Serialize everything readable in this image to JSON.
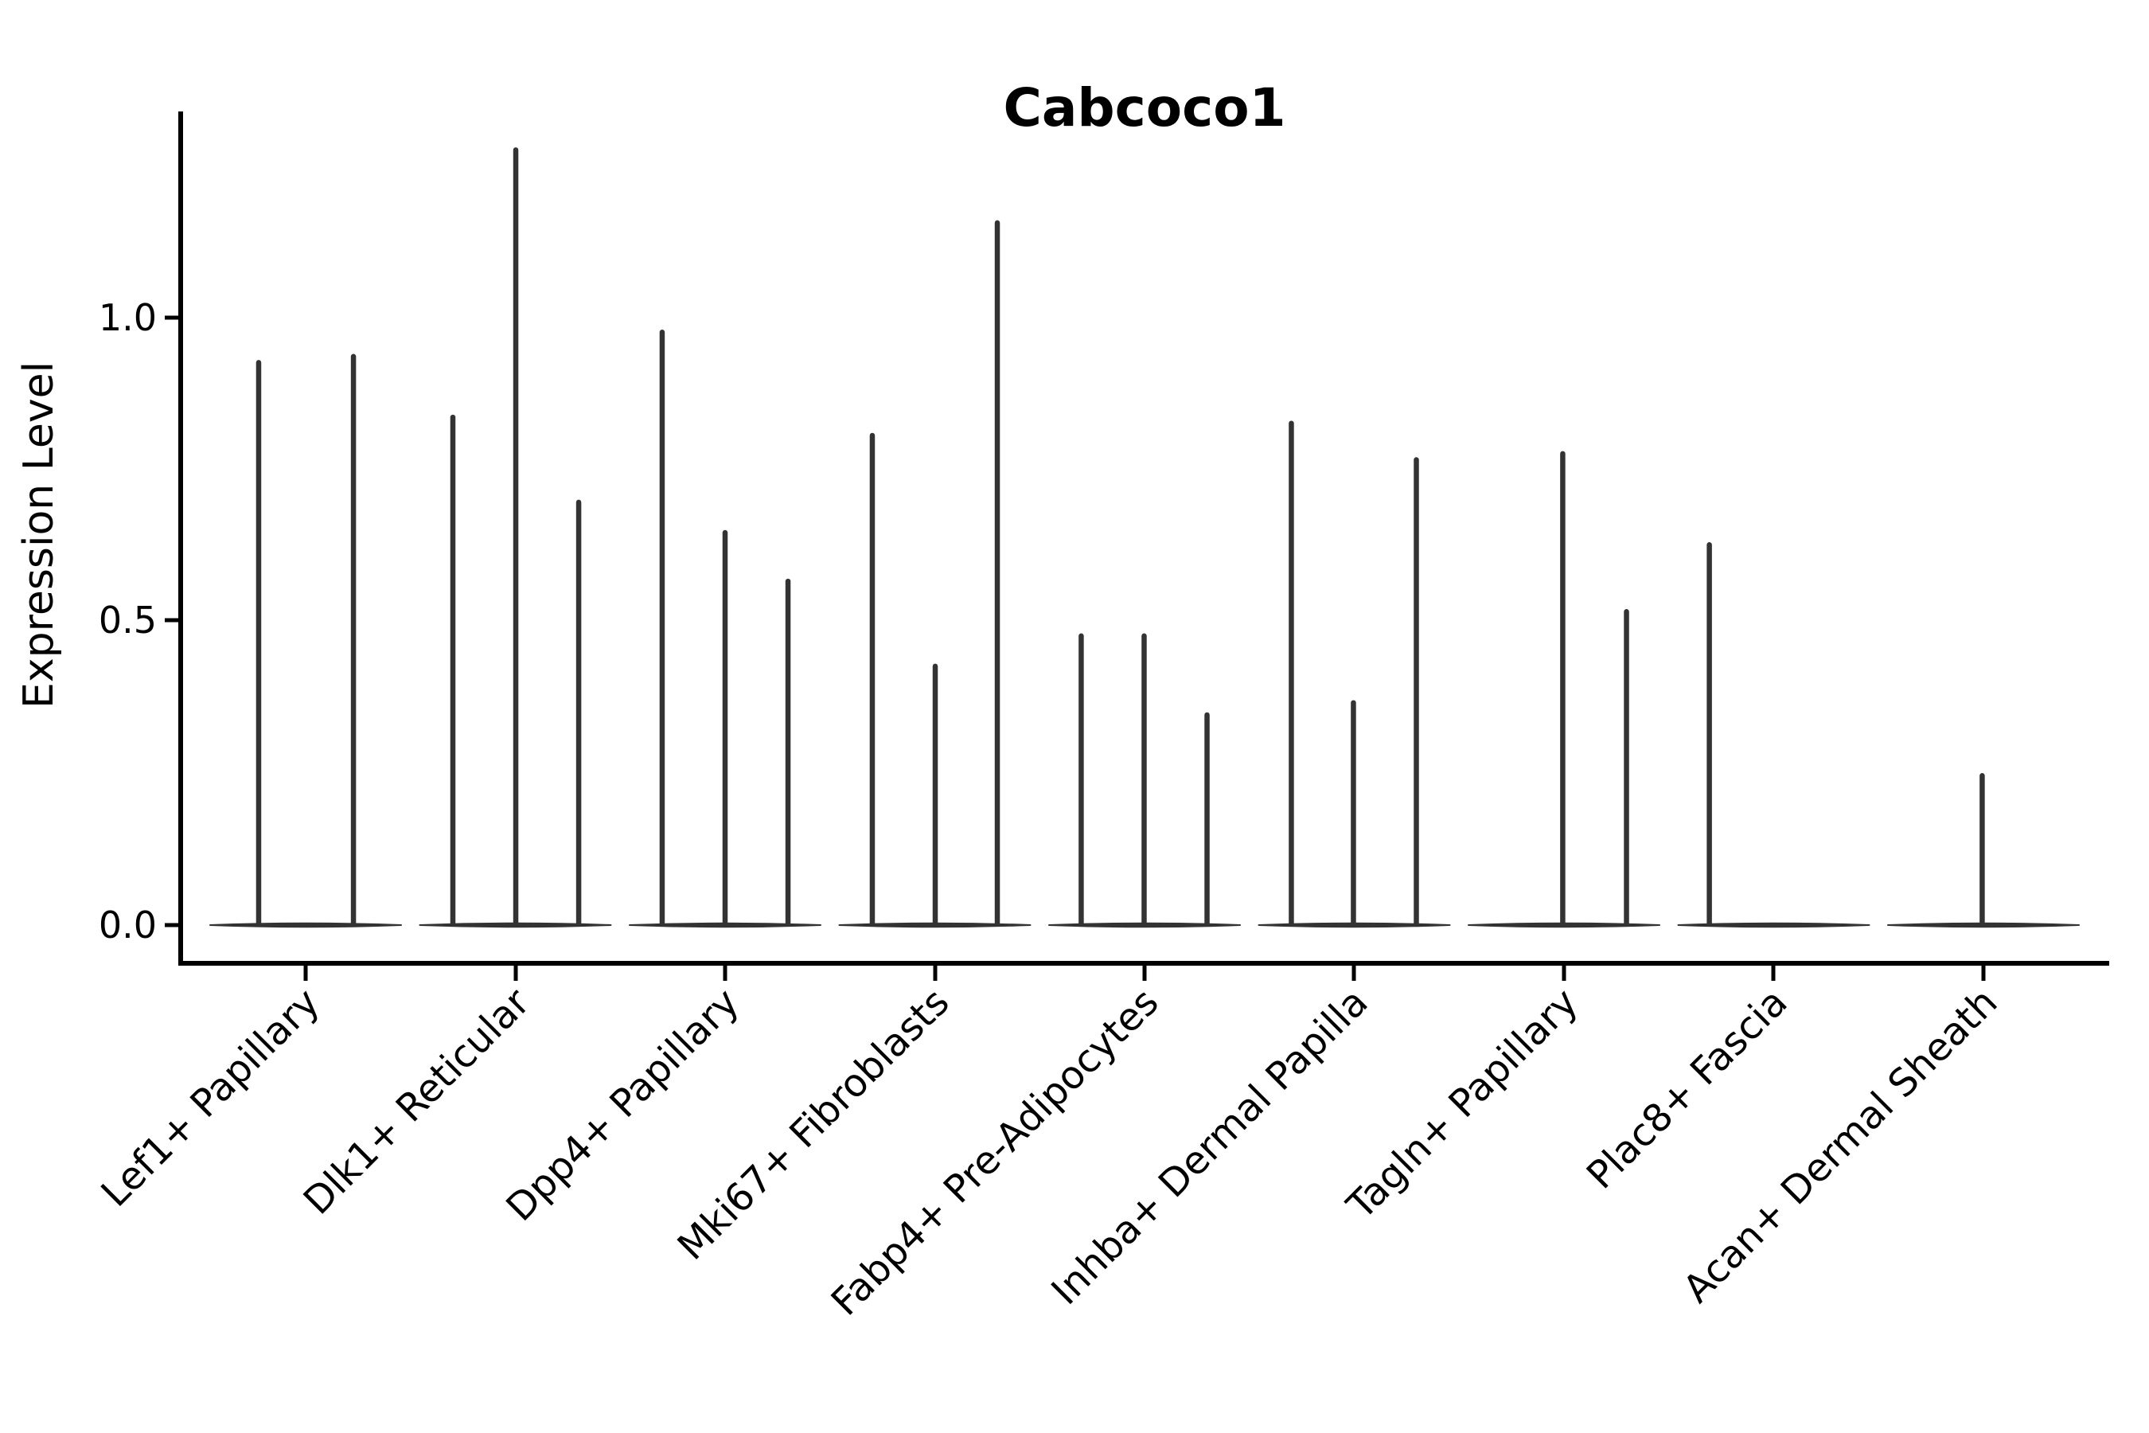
{
  "figure": {
    "background": "#ffffff"
  },
  "title": "Cabcoco1",
  "chart_data": {
    "type": "violin",
    "title": "Cabcoco1",
    "xlabel": "",
    "ylabel": "Expression Level",
    "ylim": [
      -0.06,
      1.34
    ],
    "grid": false,
    "legend_position": "none",
    "violin_color": "#333333",
    "axis_color": "#000000",
    "yticks": [
      {
        "label": "0.0",
        "value": 0.0
      },
      {
        "label": "0.5",
        "value": 0.5
      },
      {
        "label": "1.0",
        "value": 1.0
      }
    ],
    "categories": [
      "Lef1+ Papillary",
      "Dlk1+ Reticular",
      "Dpp4+ Papillary",
      "Mki67+ Fibroblasts",
      "Fabp4+ Pre-Adipocytes",
      "Inhba+ Dermal Papilla",
      "Tagln+ Papillary",
      "Plac8+ Fascia",
      "Acan+ Dermal Sheath"
    ],
    "groups": [
      {
        "label": "Lef1+ Papillary",
        "spikes": [
          {
            "pos": -0.224,
            "value": 0.93
          },
          {
            "pos": 0.228,
            "value": 0.94
          }
        ]
      },
      {
        "label": "Dlk1+ Reticular",
        "spikes": [
          {
            "pos": -0.298,
            "value": 0.84
          },
          {
            "pos": 0.002,
            "value": 1.28
          },
          {
            "pos": 0.302,
            "value": 0.7
          }
        ]
      },
      {
        "label": "Dpp4+ Papillary",
        "spikes": [
          {
            "pos": -0.3,
            "value": 0.98
          },
          {
            "pos": 0.0,
            "value": 0.65
          },
          {
            "pos": 0.3,
            "value": 0.57
          }
        ]
      },
      {
        "label": "Mki67+ Fibroblasts",
        "spikes": [
          {
            "pos": -0.298,
            "value": 0.81
          },
          {
            "pos": 0.002,
            "value": 0.43
          },
          {
            "pos": 0.298,
            "value": 1.16
          }
        ]
      },
      {
        "label": "Fabp4+ Pre-Adipocytes",
        "spikes": [
          {
            "pos": -0.302,
            "value": 0.48
          },
          {
            "pos": -0.002,
            "value": 0.48
          },
          {
            "pos": 0.298,
            "value": 0.35
          }
        ]
      },
      {
        "label": "Inhba+ Dermal Papilla",
        "spikes": [
          {
            "pos": -0.3,
            "value": 0.83
          },
          {
            "pos": -0.004,
            "value": 0.37
          },
          {
            "pos": 0.296,
            "value": 0.77
          }
        ]
      },
      {
        "label": "Tagln+ Papillary",
        "spikes": [
          {
            "pos": -0.006,
            "value": 0.78
          },
          {
            "pos": 0.298,
            "value": 0.52
          }
        ]
      },
      {
        "label": "Plac8+ Fascia",
        "spikes": [
          {
            "pos": -0.307,
            "value": 0.63
          }
        ]
      },
      {
        "label": "Acan+ Dermal Sheath",
        "spikes": [
          {
            "pos": -0.006,
            "value": 0.25
          }
        ]
      }
    ]
  }
}
